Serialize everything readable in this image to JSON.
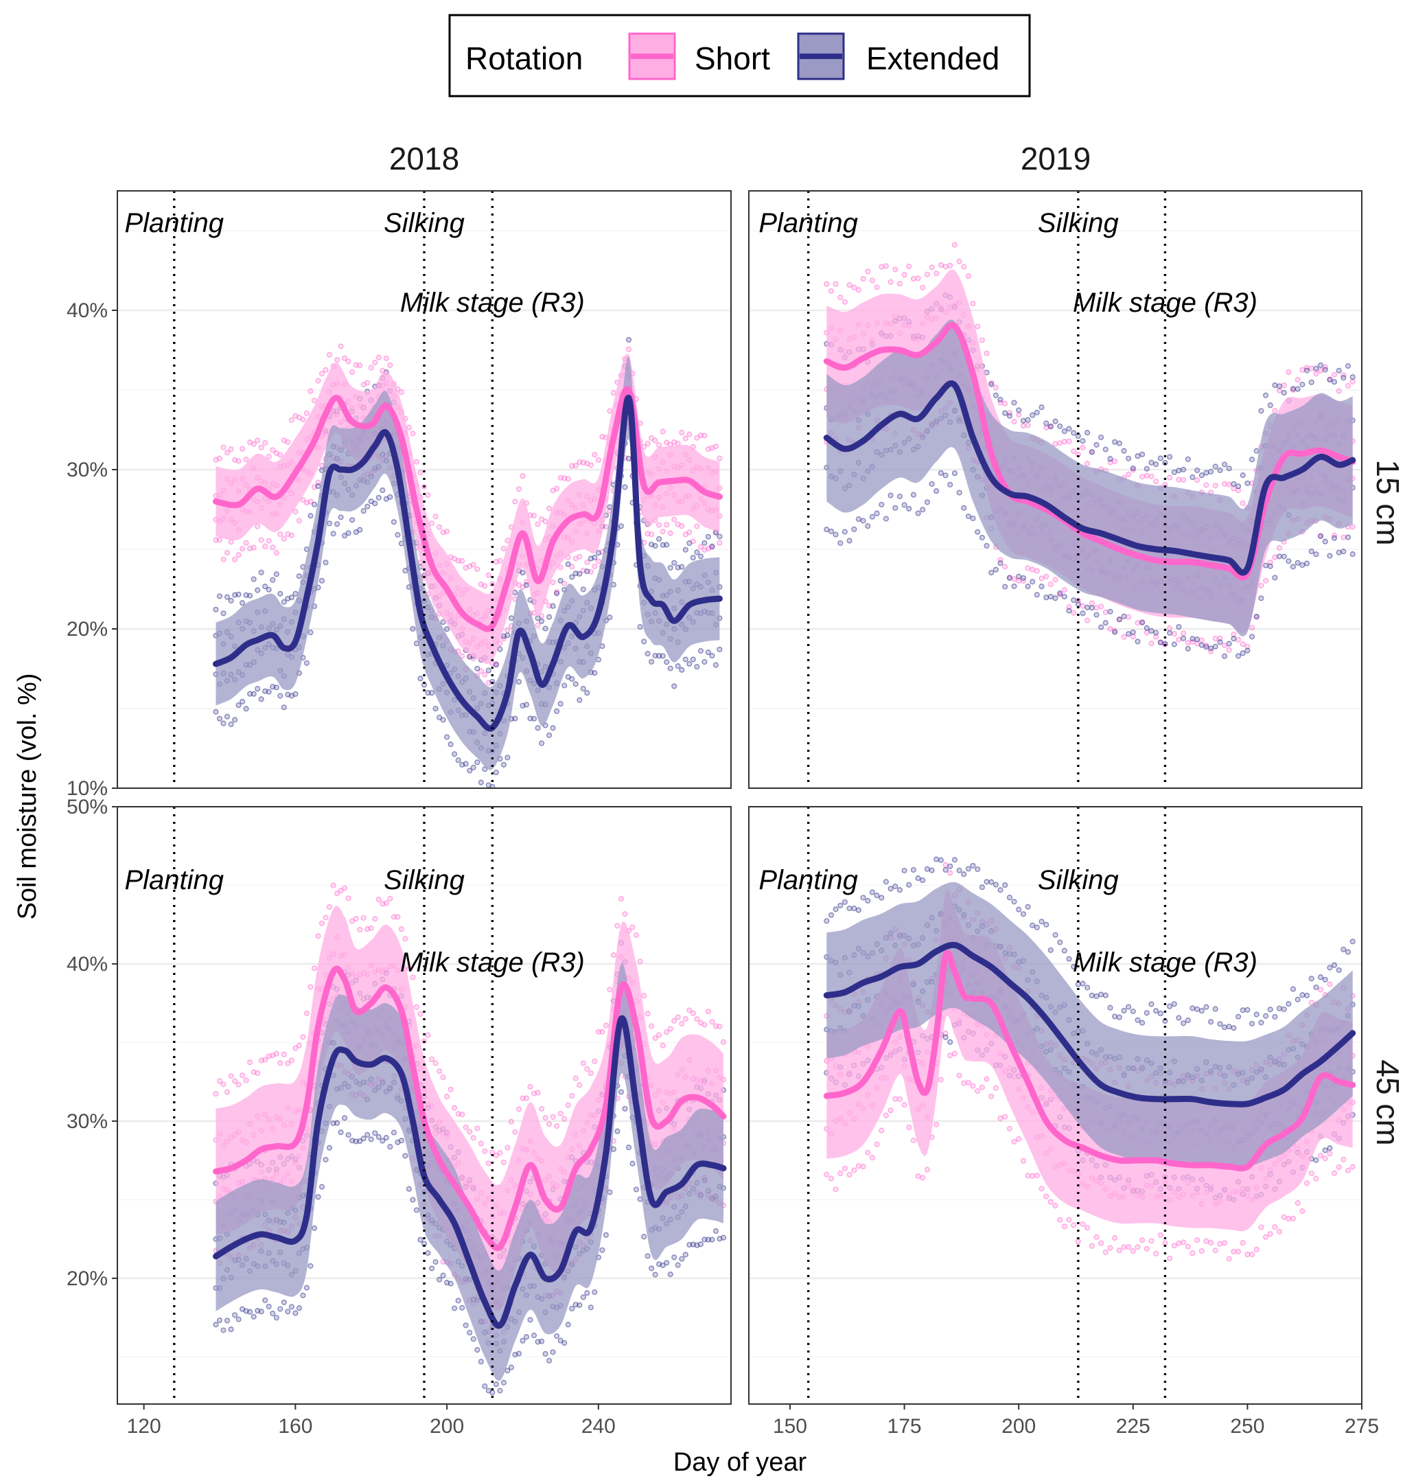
{
  "chart_data": {
    "type": "line",
    "ylabel": "Soil moisture (vol. %)",
    "xlabel": "Day of year",
    "legend": {
      "title": "Rotation",
      "position": "top",
      "entries": [
        {
          "name": "Short",
          "color": "#ff66cc",
          "fill": "#ffaee4"
        },
        {
          "name": "Extended",
          "color": "#2e2e8a",
          "fill": "#9a9ac4"
        }
      ]
    },
    "grid": true,
    "column_labels": [
      "2018",
      "2019"
    ],
    "row_labels": [
      "15 cm",
      "45 cm"
    ],
    "rows": [
      {
        "ylim": [
          10,
          47.5
        ],
        "yticks": [
          10,
          20,
          30,
          40
        ],
        "ytick_labels": [
          "10%",
          "20%",
          "30%",
          "40%"
        ]
      },
      {
        "ylim": [
          12,
          50
        ],
        "yticks": [
          20,
          30,
          40,
          50
        ],
        "ytick_labels": [
          "20%",
          "30%",
          "40%",
          "50%"
        ]
      }
    ],
    "columns": [
      {
        "xlim": [
          113,
          275
        ],
        "xticks": [
          120,
          160,
          200,
          240
        ],
        "xtick_labels": [
          "120",
          "160",
          "200",
          "240"
        ]
      },
      {
        "xlim": [
          141,
          275
        ],
        "xticks": [
          150,
          175,
          200,
          225,
          250,
          275
        ],
        "xtick_labels": [
          "150",
          "175",
          "200",
          "225",
          "250",
          "275"
        ]
      }
    ],
    "annotations": {
      "2018": [
        {
          "label": "Planting",
          "day": 128
        },
        {
          "label": "Silking",
          "day": 194
        },
        {
          "label": "Milk stage (R3)",
          "day": 212
        }
      ],
      "2019": [
        {
          "label": "Planting",
          "day": 154
        },
        {
          "label": "Silking",
          "day": 213
        },
        {
          "label": "Milk stage (R3)",
          "day": 232
        }
      ]
    },
    "panels": [
      {
        "year": "2018",
        "depth": "15 cm",
        "series": [
          {
            "name": "Short",
            "x": [
              139,
              145,
              150,
              155,
              160,
              165,
              168,
              171,
              175,
              180,
              184,
              188,
              192,
              196,
              200,
              204,
              208,
              212,
              216,
              220,
              224,
              228,
              232,
              236,
              240,
              244,
              248,
              252,
              256,
              260,
              264,
              268,
              272
            ],
            "y": [
              28,
              27.8,
              28.8,
              28.3,
              29.8,
              31.8,
              33.5,
              34.5,
              33,
              32.8,
              34,
              32,
              27.5,
              24,
              22.5,
              21,
              20.3,
              20.2,
              23,
              26,
              23,
              25.5,
              26.8,
              27.2,
              27.3,
              32,
              35,
              29,
              29.2,
              29.3,
              29.3,
              28.6,
              28.3
            ],
            "band_halfwidth": 2.2
          },
          {
            "name": "Extended",
            "x": [
              139,
              143,
              147,
              150,
              154,
              157,
              160,
              163,
              166,
              169,
              172,
              175,
              178,
              181,
              184,
              187,
              190,
              193,
              196,
              200,
              204,
              208,
              212,
              216,
              219,
              222,
              225,
              228,
              232,
              236,
              240,
              244,
              248,
              251,
              254,
              257,
              260,
              264,
              268,
              272
            ],
            "y": [
              17.8,
              18.2,
              19,
              19.3,
              19.6,
              18.8,
              19.2,
              22,
              25.5,
              29.8,
              30,
              30,
              30.5,
              31.5,
              32.3,
              30,
              25.5,
              21,
              19,
              17,
              15.5,
              14.5,
              13.8,
              16,
              19.8,
              18.5,
              16.5,
              17.8,
              20.2,
              19.5,
              21,
              26,
              34.5,
              24,
              21.8,
              21.5,
              20.5,
              21.5,
              21.8,
              21.9
            ],
            "band_halfwidth": 2.6
          }
        ]
      },
      {
        "year": "2019",
        "depth": "15 cm",
        "series": [
          {
            "name": "Short",
            "x": [
              158,
              162,
              166,
              170,
              174,
              178,
              182,
              186,
              190,
              194,
              198,
              202,
              206,
              210,
              214,
              218,
              222,
              226,
              230,
              234,
              238,
              242,
              246,
              250,
              254,
              258,
              262,
              266,
              270,
              273
            ],
            "y": [
              36.8,
              36.4,
              37,
              37.5,
              37.5,
              37.2,
              38,
              39,
              36,
              31,
              28.5,
              28,
              27.5,
              26.8,
              26,
              25.5,
              25,
              24.6,
              24.3,
              24.2,
              24.2,
              24,
              23.8,
              23.5,
              28,
              30.8,
              31,
              31.2,
              30.8,
              30.5
            ],
            "band_halfwidth": 3.5
          },
          {
            "name": "Extended",
            "x": [
              158,
              162,
              166,
              170,
              174,
              178,
              182,
              186,
              190,
              194,
              198,
              202,
              206,
              210,
              214,
              218,
              222,
              226,
              230,
              234,
              238,
              242,
              246,
              250,
              254,
              258,
              262,
              266,
              270,
              273
            ],
            "y": [
              32,
              31.3,
              31.8,
              32.8,
              33.5,
              33.2,
              34.5,
              35.3,
              32,
              29.5,
              28.5,
              28.3,
              27.8,
              27,
              26.3,
              26,
              25.6,
              25.2,
              25,
              24.9,
              24.7,
              24.5,
              24.3,
              23.8,
              29,
              29.5,
              30,
              30.8,
              30.3,
              30.6
            ],
            "band_halfwidth": 4.0
          }
        ]
      },
      {
        "year": "2018",
        "depth": "45 cm",
        "series": [
          {
            "name": "Short",
            "x": [
              139,
              143,
              147,
              151,
              155,
              160,
              163,
              166,
              170,
              173,
              176,
              180,
              184,
              188,
              191,
              194,
              198,
              202,
              206,
              210,
              214,
              218,
              222,
              226,
              230,
              234,
              238,
              242,
              246,
              250,
              254,
              258,
              262,
              266,
              270,
              273
            ],
            "y": [
              26.8,
              27,
              27.5,
              28.2,
              28.4,
              28.6,
              31,
              36,
              39.5,
              39,
              37,
              37.5,
              38.5,
              37,
              33.5,
              30,
              27.5,
              26,
              24.5,
              22.8,
              22,
              24.5,
              27.2,
              25,
              24.5,
              27,
              28.2,
              31,
              38.5,
              36,
              30.2,
              30,
              31.3,
              31.5,
              31,
              30.3
            ],
            "band_halfwidth": 4.0
          },
          {
            "name": "Extended",
            "x": [
              139,
              143,
              147,
              151,
              155,
              160,
              163,
              166,
              170,
              173,
              176,
              180,
              184,
              188,
              191,
              194,
              198,
              202,
              206,
              210,
              214,
              218,
              222,
              226,
              230,
              234,
              238,
              242,
              246,
              250,
              254,
              258,
              262,
              266,
              270,
              273
            ],
            "y": [
              21.4,
              22,
              22.5,
              22.8,
              22.6,
              22.4,
              24,
              30,
              34,
              34.5,
              33.8,
              33.6,
              34,
              33,
              30,
              26.5,
              25,
              23.5,
              21,
              18.5,
              17,
              19.5,
              21.5,
              20,
              20.5,
              23,
              23.2,
              28,
              36.5,
              31,
              25,
              25.5,
              26,
              27.2,
              27.2,
              27
            ],
            "band_halfwidth": 3.5
          }
        ]
      },
      {
        "year": "2019",
        "depth": "45 cm",
        "series": [
          {
            "name": "Short",
            "x": [
              158,
              162,
              166,
              170,
              174,
              176,
              178,
              180,
              182,
              184,
              186,
              188,
              190,
              194,
              198,
              202,
              206,
              210,
              214,
              218,
              222,
              226,
              230,
              234,
              238,
              242,
              246,
              250,
              254,
              258,
              262,
              266,
              270,
              273
            ],
            "y": [
              31.6,
              31.8,
              32.5,
              34.5,
              37,
              35,
              32.5,
              32,
              35.5,
              40.5,
              39.5,
              38,
              37.8,
              37.5,
              35,
              32.5,
              30,
              28.8,
              28.3,
              27.8,
              27.5,
              27.5,
              27.5,
              27.3,
              27.2,
              27.2,
              27.1,
              27.1,
              28.5,
              29.2,
              30.2,
              32.8,
              32.5,
              32.3
            ],
            "band_halfwidth": 4.0
          },
          {
            "name": "Extended",
            "x": [
              158,
              162,
              166,
              170,
              174,
              178,
              182,
              186,
              190,
              194,
              198,
              202,
              206,
              210,
              214,
              218,
              222,
              226,
              230,
              234,
              238,
              242,
              246,
              250,
              254,
              258,
              262,
              266,
              270,
              273
            ],
            "y": [
              38,
              38.2,
              38.8,
              39.2,
              39.8,
              40,
              40.8,
              41.2,
              40.5,
              39.8,
              38.8,
              37.8,
              36.5,
              35,
              33.5,
              32.3,
              31.8,
              31.5,
              31.4,
              31.4,
              31.4,
              31.2,
              31.1,
              31.1,
              31.5,
              32,
              33,
              33.8,
              34.8,
              35.6
            ],
            "band_halfwidth": 4.0
          }
        ]
      }
    ]
  }
}
